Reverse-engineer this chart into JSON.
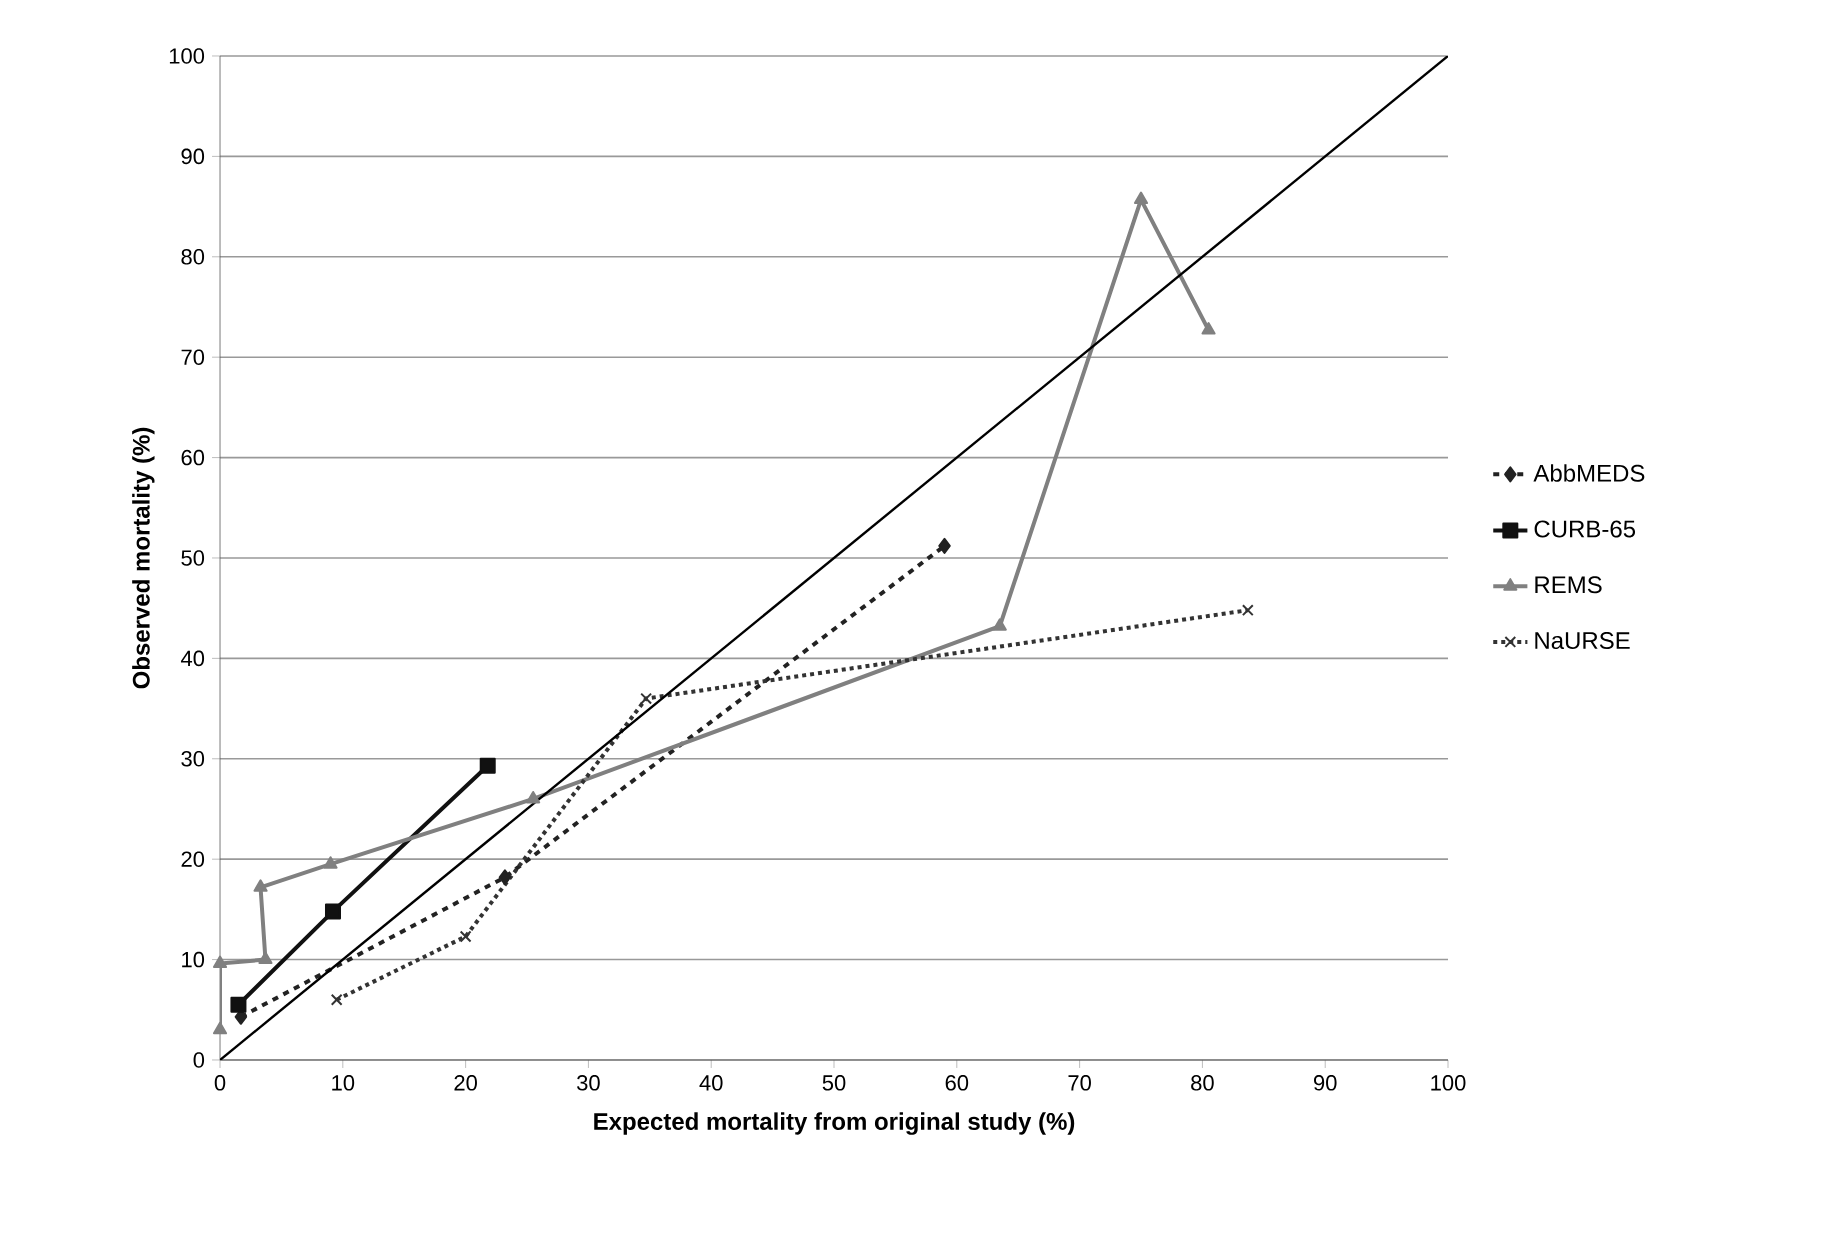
{
  "chart_data": {
    "type": "line",
    "xlabel": "Expected mortality from original study (%)",
    "ylabel": "Observed mortality (%)",
    "xlim": [
      0,
      100
    ],
    "ylim": [
      0,
      100
    ],
    "xticks": [
      0,
      10,
      20,
      30,
      40,
      50,
      60,
      70,
      80,
      90,
      100
    ],
    "yticks": [
      0,
      10,
      20,
      30,
      40,
      50,
      60,
      70,
      80,
      90,
      100
    ],
    "grid": "y",
    "legend": "right",
    "series": [
      {
        "name": "AbbMEDS",
        "color": "#222222",
        "marker": "diamond",
        "line_style": "dashed",
        "x": [
          1.7,
          23.2,
          59
        ],
        "values": [
          4.3,
          18.2,
          51.2
        ]
      },
      {
        "name": "CURB-65",
        "color": "#111111",
        "marker": "square",
        "line_style": "solid",
        "x": [
          1.5,
          9.2,
          21.8
        ],
        "values": [
          5.5,
          14.8,
          29.3
        ]
      },
      {
        "name": "REMS",
        "color": "#808080",
        "marker": "triangle",
        "line_style": "solid",
        "x": [
          0,
          0,
          3.7,
          3.3,
          9,
          25.5,
          63.5,
          75,
          80.5
        ],
        "values": [
          3,
          9.6,
          10,
          17.2,
          19.5,
          26,
          43.2,
          85.7,
          72.7
        ]
      },
      {
        "name": "NaURSE",
        "color": "#333333",
        "marker": "cross",
        "line_style": "dotted",
        "x": [
          9.5,
          20,
          34.7,
          83.7
        ],
        "values": [
          6,
          12.3,
          36,
          44.8
        ]
      },
      {
        "color": "#000000",
        "marker": "none",
        "line_style": "solid",
        "x": [
          0,
          100
        ],
        "values": [
          0,
          100
        ]
      }
    ]
  }
}
